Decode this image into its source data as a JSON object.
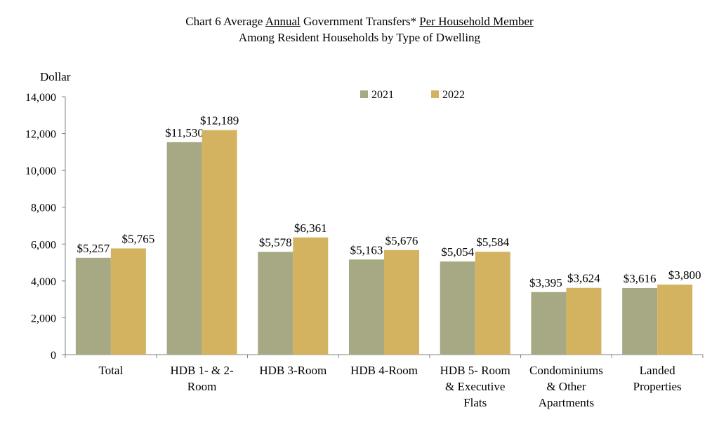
{
  "title": {
    "prefix": "Chart 6 Average ",
    "annual": "Annual",
    "middle": " Government Transfers* ",
    "per_member": "Per Household Member",
    "line2": "Among Resident Households by Type of Dwelling"
  },
  "chart_data": {
    "type": "bar",
    "ylabel": "Dollar",
    "ylim": [
      0,
      14000
    ],
    "yticks": [
      0,
      2000,
      4000,
      6000,
      8000,
      10000,
      12000,
      14000
    ],
    "ytick_labels": [
      "0",
      "2,000",
      "4,000",
      "6,000",
      "8,000",
      "10,000",
      "12,000",
      "14,000"
    ],
    "grid": false,
    "legend_position": "top-center",
    "categories": [
      [
        "Total"
      ],
      [
        "HDB 1- & 2-",
        "Room"
      ],
      [
        "HDB 3-Room"
      ],
      [
        "HDB 4-Room"
      ],
      [
        "HDB 5- Room",
        "& Executive",
        "Flats"
      ],
      [
        "Condominiums",
        "& Other",
        "Apartments"
      ],
      [
        "Landed",
        "Properties"
      ]
    ],
    "series": [
      {
        "name": "2021",
        "color": "#a6a984",
        "values": [
          5257,
          11530,
          5578,
          5163,
          5054,
          3395,
          3616
        ],
        "labels": [
          "$5,257",
          "$11,530",
          "$5,578",
          "$5,163",
          "$5,054",
          "$3,395",
          "$3,616"
        ]
      },
      {
        "name": "2022",
        "color": "#d4b360",
        "values": [
          5765,
          12189,
          6361,
          5676,
          5584,
          3624,
          3800
        ],
        "labels": [
          "$5,765",
          "$12,189",
          "$6,361",
          "$5,676",
          "$5,584",
          "$3,624",
          "$3,800"
        ]
      }
    ]
  }
}
